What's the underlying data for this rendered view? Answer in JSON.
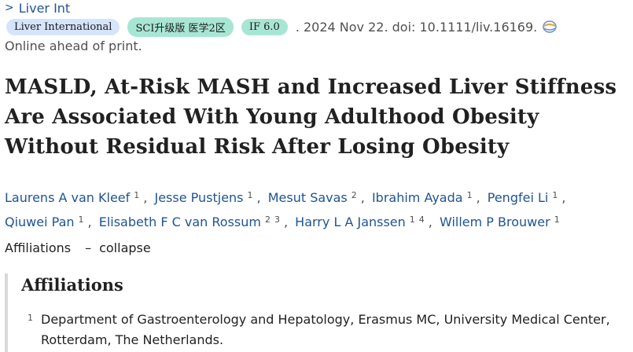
{
  "journal": {
    "chevron": ">",
    "name": "Liver Int"
  },
  "badges": {
    "journal_name": "Liver International",
    "sci_rank": "SCI升级版 医学2区",
    "impact_factor": "IF 6.0"
  },
  "citation": ". 2024 Nov 22. doi: 10.1111/liv.16169.",
  "status": "Online ahead of print.",
  "title": "MASLD, At-Risk MASH and Increased Liver Stiffness Are Associated With Young Adulthood Obesity Without Residual Risk After Losing Obesity",
  "authors": [
    {
      "name": "Laurens A van Kleef",
      "affils": [
        "1"
      ]
    },
    {
      "name": "Jesse Pustjens",
      "affils": [
        "1"
      ]
    },
    {
      "name": "Mesut Savas",
      "affils": [
        "2"
      ]
    },
    {
      "name": "Ibrahim Ayada",
      "affils": [
        "1"
      ]
    },
    {
      "name": "Pengfei Li",
      "affils": [
        "1"
      ]
    },
    {
      "name": "Qiuwei Pan",
      "affils": [
        "1"
      ]
    },
    {
      "name": "Elisabeth F C van Rossum",
      "affils": [
        "2",
        "3"
      ]
    },
    {
      "name": "Harry L A Janssen",
      "affils": [
        "1",
        "4"
      ]
    },
    {
      "name": "Willem P Brouwer",
      "affils": [
        "1"
      ]
    }
  ],
  "affiliations_toggle": {
    "label": "Affiliations",
    "dash": "–",
    "action": "collapse"
  },
  "affiliations_panel": {
    "heading": "Affiliations",
    "items": [
      {
        "num": "1",
        "text": "Department of Gastroenterology and Hepatology, Erasmus MC, University Medical Center, Rotterdam, The Netherlands."
      }
    ]
  },
  "colors": {
    "link": "#205493",
    "badge_blue": "#d6e4fb",
    "badge_green": "#a8e6d4"
  }
}
